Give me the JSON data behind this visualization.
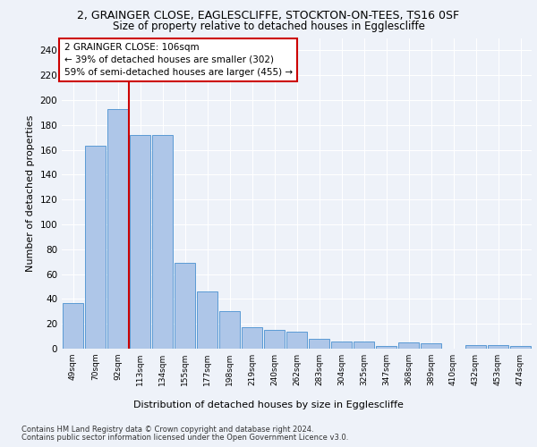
{
  "title_line1": "2, GRAINGER CLOSE, EAGLESCLIFFE, STOCKTON-ON-TEES, TS16 0SF",
  "title_line2": "Size of property relative to detached houses in Egglescliffe",
  "xlabel": "Distribution of detached houses by size in Egglescliffe",
  "ylabel": "Number of detached properties",
  "categories": [
    "49sqm",
    "70sqm",
    "92sqm",
    "113sqm",
    "134sqm",
    "155sqm",
    "177sqm",
    "198sqm",
    "219sqm",
    "240sqm",
    "262sqm",
    "283sqm",
    "304sqm",
    "325sqm",
    "347sqm",
    "368sqm",
    "389sqm",
    "410sqm",
    "432sqm",
    "453sqm",
    "474sqm"
  ],
  "values": [
    37,
    163,
    193,
    172,
    172,
    69,
    46,
    30,
    17,
    15,
    14,
    8,
    6,
    6,
    2,
    5,
    4,
    0,
    3,
    3,
    2
  ],
  "bar_color": "#aec6e8",
  "bar_edge_color": "#5b9bd5",
  "vline_x": 2.5,
  "vline_color": "#cc0000",
  "annotation_text": "2 GRAINGER CLOSE: 106sqm\n← 39% of detached houses are smaller (302)\n59% of semi-detached houses are larger (455) →",
  "annotation_box_color": "#ffffff",
  "annotation_box_edge": "#cc0000",
  "ylim": [
    0,
    250
  ],
  "yticks": [
    0,
    20,
    40,
    60,
    80,
    100,
    120,
    140,
    160,
    180,
    200,
    220,
    240
  ],
  "footer_line1": "Contains HM Land Registry data © Crown copyright and database right 2024.",
  "footer_line2": "Contains public sector information licensed under the Open Government Licence v3.0.",
  "bg_color": "#eef2f9",
  "plot_bg_color": "#eef2f9"
}
